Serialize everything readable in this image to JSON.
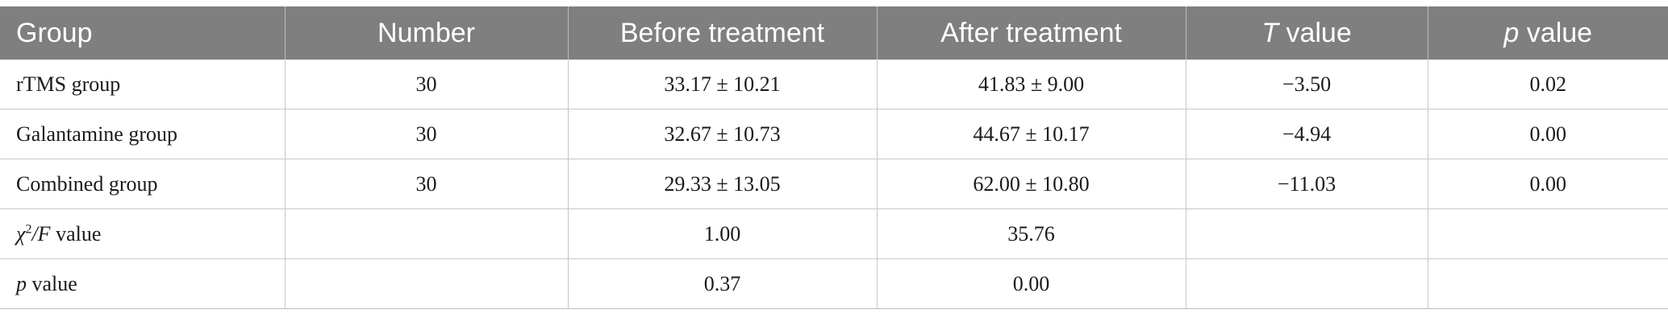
{
  "table": {
    "headers": [
      {
        "label": "Group",
        "italic": ""
      },
      {
        "label": "Number",
        "italic": ""
      },
      {
        "label": "Before treatment",
        "italic": ""
      },
      {
        "label": "After treatment",
        "italic": ""
      },
      {
        "label": " value",
        "italic": "T"
      },
      {
        "label": " value",
        "italic": "p"
      }
    ],
    "rows": [
      {
        "group": "rTMS group",
        "number": "30",
        "before": "33.17 ± 10.21",
        "after": "41.83 ± 9.00",
        "t": "−3.50",
        "p": "0.02"
      },
      {
        "group": "Galantamine group",
        "number": "30",
        "before": "32.67 ± 10.73",
        "after": "44.67 ± 10.17",
        "t": "−4.94",
        "p": "0.00"
      },
      {
        "group": "Combined group",
        "number": "30",
        "before": "29.33 ± 13.05",
        "after": "62.00 ± 10.80",
        "t": "−11.03",
        "p": "0.00"
      }
    ],
    "stat_rows": [
      {
        "label_italic": "χ",
        "sup": "2",
        "label_italic2": "/F",
        "label_rest": " value",
        "before": "1.00",
        "after": "35.76"
      },
      {
        "label_italic": "p",
        "sup": "",
        "label_italic2": "",
        "label_rest": " value",
        "before": "0.37",
        "after": "0.00"
      }
    ]
  }
}
